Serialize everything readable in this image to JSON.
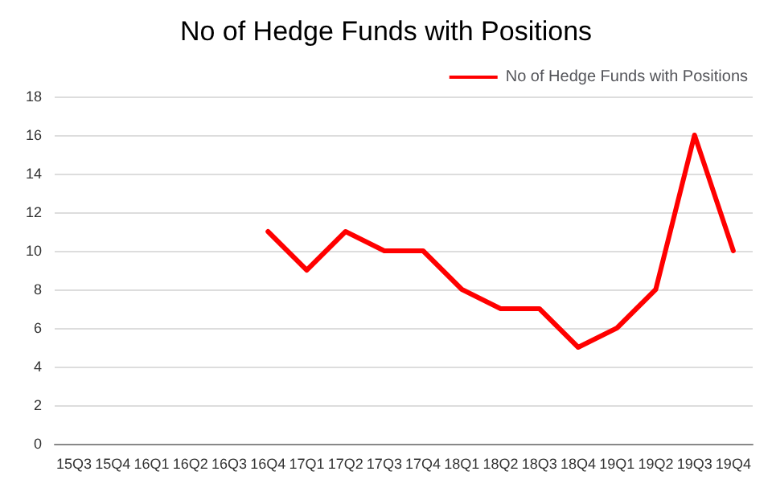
{
  "chart_data": {
    "type": "line",
    "title": "No of Hedge Funds with Positions",
    "categories": [
      "15Q3",
      "15Q4",
      "16Q1",
      "16Q2",
      "16Q3",
      "16Q4",
      "17Q1",
      "17Q2",
      "17Q3",
      "17Q4",
      "18Q1",
      "18Q2",
      "18Q3",
      "18Q4",
      "19Q1",
      "19Q2",
      "19Q3",
      "19Q4"
    ],
    "series": [
      {
        "name": "No of Hedge Funds with Positions",
        "color": "#ff0000",
        "values": [
          null,
          null,
          null,
          null,
          null,
          11,
          9,
          11,
          10,
          10,
          8,
          7,
          7,
          5,
          6,
          8,
          16,
          10
        ]
      }
    ],
    "ylim": [
      0,
      18
    ],
    "yticks": [
      0,
      2,
      4,
      6,
      8,
      10,
      12,
      14,
      16,
      18
    ],
    "grid": "y",
    "legend": "top right",
    "marker": "none",
    "line_style": "solid"
  }
}
